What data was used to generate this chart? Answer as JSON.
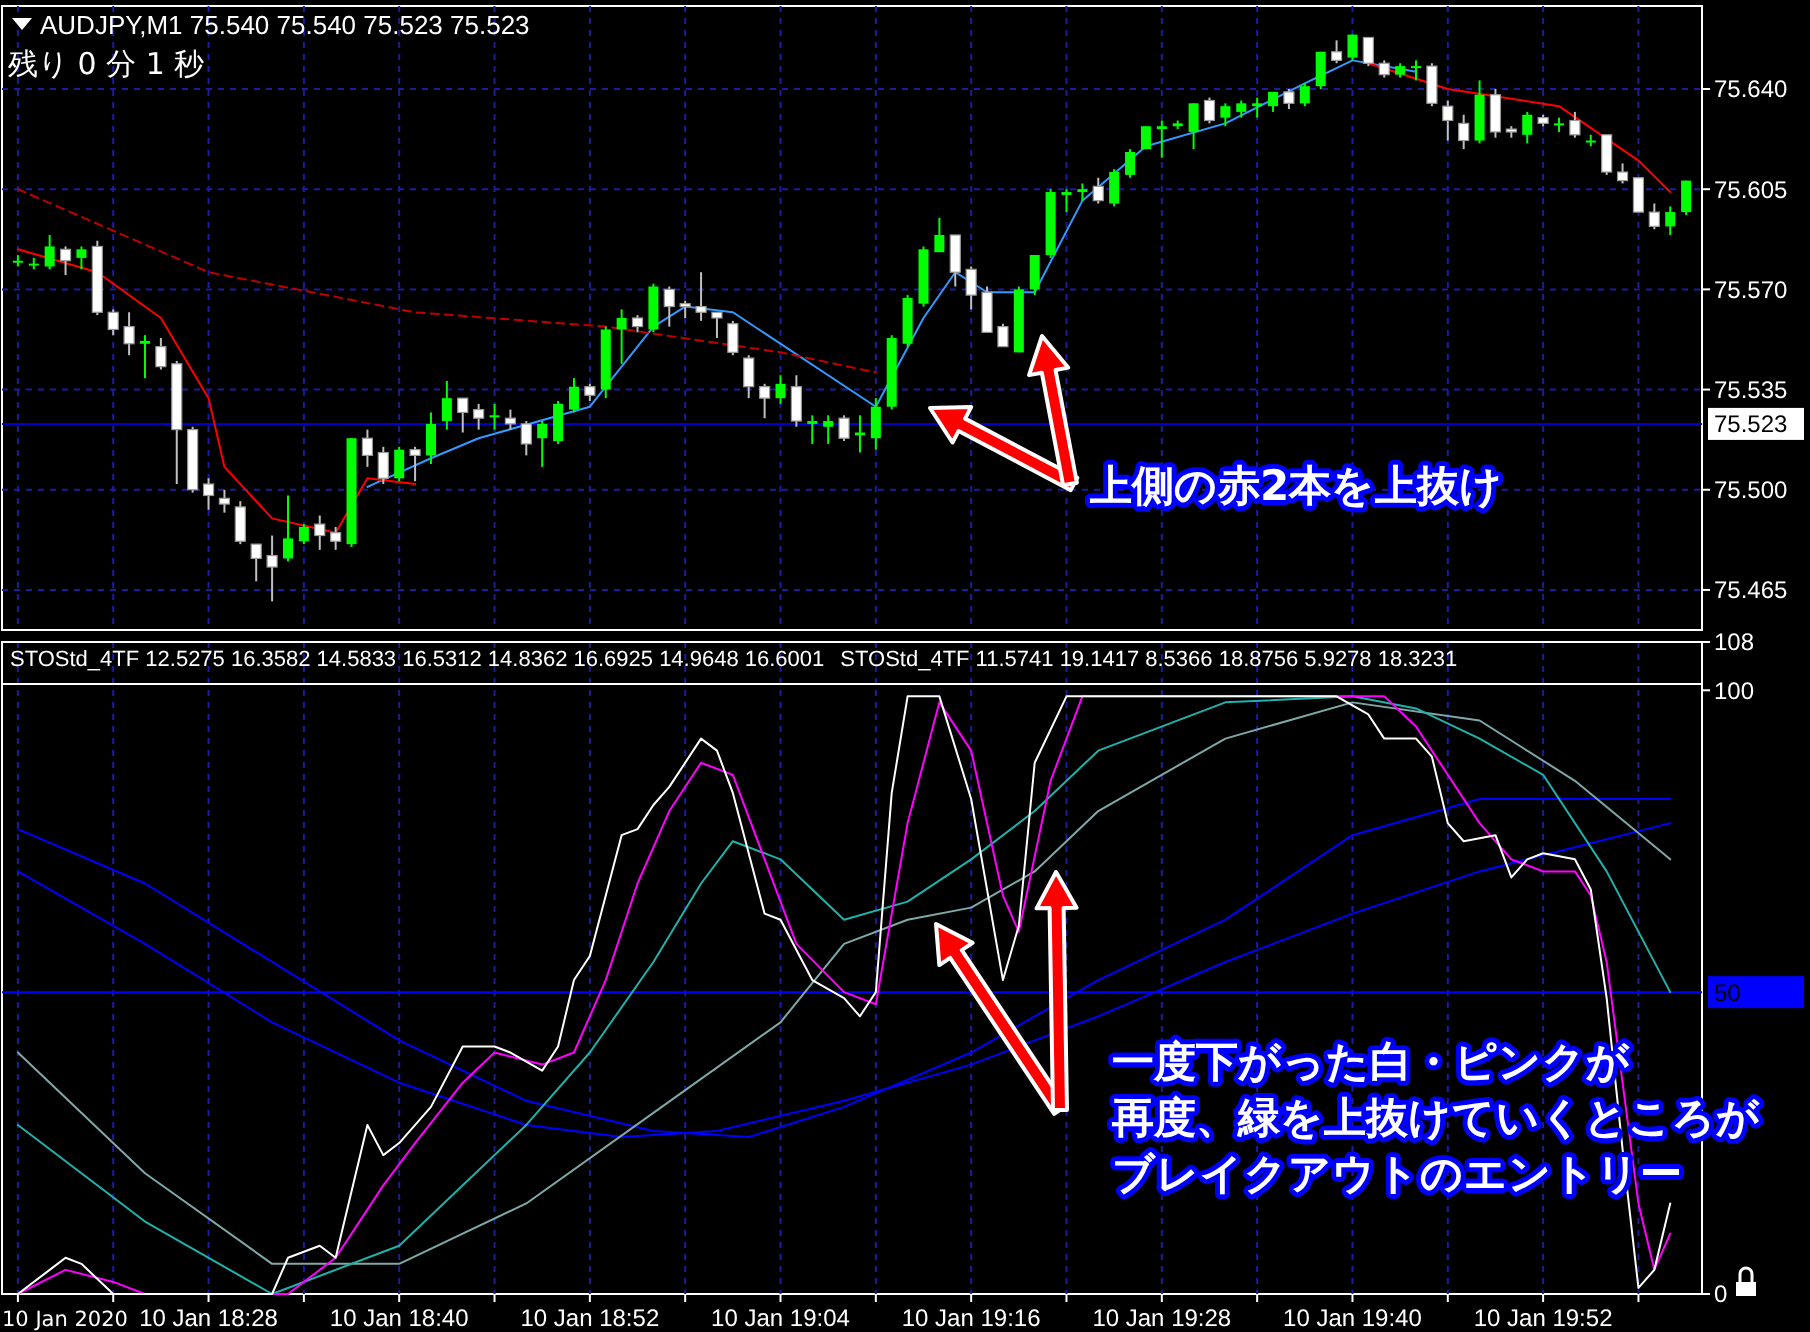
{
  "chart_data": [
    {
      "type": "candlestick",
      "title": "AUDJPY,M1 75.540 75.540 75.523 75.523",
      "annotations": [
        "残り 0 分 1 秒",
        "上側の赤2本を上抜け"
      ],
      "x": [
        "2020-01-10T18:16",
        "2020-01-10T18:17",
        "2020-01-10T18:18",
        "2020-01-10T18:19",
        "2020-01-10T18:20",
        "2020-01-10T18:21",
        "2020-01-10T18:22",
        "2020-01-10T18:23",
        "2020-01-10T18:24",
        "2020-01-10T18:25",
        "2020-01-10T18:26",
        "2020-01-10T18:27",
        "2020-01-10T18:28",
        "2020-01-10T18:29",
        "2020-01-10T18:30",
        "2020-01-10T18:31",
        "2020-01-10T18:32",
        "2020-01-10T18:33",
        "2020-01-10T18:34",
        "2020-01-10T18:35",
        "2020-01-10T18:36",
        "2020-01-10T18:37",
        "2020-01-10T18:38",
        "2020-01-10T18:39",
        "2020-01-10T18:40",
        "2020-01-10T18:41",
        "2020-01-10T18:42",
        "2020-01-10T18:43",
        "2020-01-10T18:44",
        "2020-01-10T18:45",
        "2020-01-10T18:46",
        "2020-01-10T18:47",
        "2020-01-10T18:48",
        "2020-01-10T18:49",
        "2020-01-10T18:50",
        "2020-01-10T18:51",
        "2020-01-10T18:52",
        "2020-01-10T18:53",
        "2020-01-10T18:54",
        "2020-01-10T18:55",
        "2020-01-10T18:56",
        "2020-01-10T18:57",
        "2020-01-10T18:58",
        "2020-01-10T18:59",
        "2020-01-10T19:00",
        "2020-01-10T19:01",
        "2020-01-10T19:02",
        "2020-01-10T19:03",
        "2020-01-10T19:04",
        "2020-01-10T19:05",
        "2020-01-10T19:06",
        "2020-01-10T19:07",
        "2020-01-10T19:08",
        "2020-01-10T19:09",
        "2020-01-10T19:10",
        "2020-01-10T19:11",
        "2020-01-10T19:12",
        "2020-01-10T19:13",
        "2020-01-10T19:14",
        "2020-01-10T19:15",
        "2020-01-10T19:16",
        "2020-01-10T19:17",
        "2020-01-10T19:18",
        "2020-01-10T19:19",
        "2020-01-10T19:20",
        "2020-01-10T19:21",
        "2020-01-10T19:22",
        "2020-01-10T19:23",
        "2020-01-10T19:24",
        "2020-01-10T19:25",
        "2020-01-10T19:26",
        "2020-01-10T19:27",
        "2020-01-10T19:28",
        "2020-01-10T19:29",
        "2020-01-10T19:30",
        "2020-01-10T19:31",
        "2020-01-10T19:32",
        "2020-01-10T19:33",
        "2020-01-10T19:34",
        "2020-01-10T19:35",
        "2020-01-10T19:36",
        "2020-01-10T19:37",
        "2020-01-10T19:38",
        "2020-01-10T19:39",
        "2020-01-10T19:40",
        "2020-01-10T19:41",
        "2020-01-10T19:42",
        "2020-01-10T19:43",
        "2020-01-10T19:44",
        "2020-01-10T19:45",
        "2020-01-10T19:46",
        "2020-01-10T19:47",
        "2020-01-10T19:48",
        "2020-01-10T19:49",
        "2020-01-10T19:50",
        "2020-01-10T19:51",
        "2020-01-10T19:52",
        "2020-01-10T19:53",
        "2020-01-10T19:54",
        "2020-01-10T19:55",
        "2020-01-10T19:56",
        "2020-01-10T19:57",
        "2020-01-10T19:58",
        "2020-01-10T19:59",
        "2020-01-10T20:00",
        "2020-01-10T20:01"
      ],
      "ohlc": [
        [
          75.58,
          75.582,
          75.578,
          75.58
        ],
        [
          75.579,
          75.581,
          75.577,
          75.579
        ],
        [
          75.578,
          75.589,
          75.577,
          75.585
        ],
        [
          75.584,
          75.585,
          75.575,
          75.58
        ],
        [
          75.581,
          75.585,
          75.577,
          75.584
        ],
        [
          75.585,
          75.587,
          75.561,
          75.562
        ],
        [
          75.562,
          75.563,
          75.554,
          75.556
        ],
        [
          75.557,
          75.562,
          75.547,
          75.551
        ],
        [
          75.551,
          75.554,
          75.539,
          75.552
        ],
        [
          75.55,
          75.553,
          75.542,
          75.543
        ],
        [
          75.544,
          75.545,
          75.502,
          75.521
        ],
        [
          75.521,
          75.522,
          75.499,
          75.5
        ],
        [
          75.502,
          75.504,
          75.493,
          75.498
        ],
        [
          75.497,
          75.5,
          75.492,
          75.495
        ],
        [
          75.494,
          75.496,
          75.481,
          75.482
        ],
        [
          75.481,
          75.481,
          75.468,
          75.476
        ],
        [
          75.477,
          75.484,
          75.461,
          75.473
        ],
        [
          75.476,
          75.498,
          75.475,
          75.483
        ],
        [
          75.482,
          75.488,
          75.481,
          75.487
        ],
        [
          75.488,
          75.491,
          75.479,
          75.484
        ],
        [
          75.485,
          75.487,
          75.479,
          75.482
        ],
        [
          75.481,
          75.518,
          75.48,
          75.518
        ],
        [
          75.518,
          75.521,
          75.508,
          75.512
        ],
        [
          75.513,
          75.515,
          75.502,
          75.504
        ],
        [
          75.504,
          75.515,
          75.503,
          75.514
        ],
        [
          75.514,
          75.515,
          75.503,
          75.512
        ],
        [
          75.512,
          75.527,
          75.509,
          75.523
        ],
        [
          75.524,
          75.538,
          75.521,
          75.532
        ],
        [
          75.532,
          75.532,
          75.52,
          75.527
        ],
        [
          75.528,
          75.53,
          75.521,
          75.525
        ],
        [
          75.526,
          75.53,
          75.521,
          75.526
        ],
        [
          75.525,
          75.528,
          75.521,
          75.523
        ],
        [
          75.523,
          75.524,
          75.512,
          75.516
        ],
        [
          75.518,
          75.524,
          75.508,
          75.523
        ],
        [
          75.517,
          75.531,
          75.516,
          75.53
        ],
        [
          75.528,
          75.539,
          75.527,
          75.536
        ],
        [
          75.536,
          75.537,
          75.531,
          75.533
        ],
        [
          75.535,
          75.557,
          75.532,
          75.556
        ],
        [
          75.556,
          75.563,
          75.544,
          75.56
        ],
        [
          75.56,
          75.561,
          75.555,
          75.557
        ],
        [
          75.556,
          75.572,
          75.555,
          75.571
        ],
        [
          75.57,
          75.571,
          75.557,
          75.564
        ],
        [
          75.565,
          75.566,
          75.56,
          75.564
        ],
        [
          75.564,
          75.576,
          75.559,
          75.562
        ],
        [
          75.562,
          75.562,
          75.553,
          75.56
        ],
        [
          75.558,
          75.559,
          75.547,
          75.548
        ],
        [
          75.546,
          75.547,
          75.532,
          75.536
        ],
        [
          75.536,
          75.537,
          75.525,
          75.532
        ],
        [
          75.532,
          75.54,
          75.53,
          75.537
        ],
        [
          75.536,
          75.54,
          75.522,
          75.524
        ],
        [
          75.523,
          75.526,
          75.516,
          75.524
        ],
        [
          75.522,
          75.526,
          75.516,
          75.524
        ],
        [
          75.525,
          75.526,
          75.517,
          75.518
        ],
        [
          75.519,
          75.526,
          75.513,
          75.52
        ],
        [
          75.518,
          75.532,
          75.514,
          75.529
        ],
        [
          75.529,
          75.554,
          75.528,
          75.553
        ],
        [
          75.551,
          75.568,
          75.55,
          75.567
        ],
        [
          75.565,
          75.585,
          75.564,
          75.584
        ],
        [
          75.583,
          75.595,
          75.583,
          75.589
        ],
        [
          75.589,
          75.589,
          75.571,
          75.576
        ],
        [
          75.577,
          75.578,
          75.563,
          75.568
        ],
        [
          75.569,
          75.571,
          75.555,
          75.555
        ],
        [
          75.557,
          75.558,
          75.55,
          75.55
        ],
        [
          75.548,
          75.571,
          75.548,
          75.57
        ],
        [
          75.57,
          75.582,
          75.568,
          75.582
        ],
        [
          75.582,
          75.605,
          75.581,
          75.604
        ],
        [
          75.603,
          75.605,
          75.597,
          75.604
        ],
        [
          75.604,
          75.607,
          75.601,
          75.605
        ],
        [
          75.606,
          75.609,
          75.6,
          75.601
        ],
        [
          75.6,
          75.612,
          75.599,
          75.611
        ],
        [
          75.61,
          75.619,
          75.609,
          75.618
        ],
        [
          75.619,
          75.627,
          75.619,
          75.627
        ],
        [
          75.626,
          75.629,
          75.616,
          75.627
        ],
        [
          75.627,
          75.629,
          75.626,
          75.628
        ],
        [
          75.625,
          75.635,
          75.619,
          75.635
        ],
        [
          75.636,
          75.637,
          75.628,
          75.629
        ],
        [
          75.63,
          75.635,
          75.627,
          75.634
        ],
        [
          75.632,
          75.636,
          75.63,
          75.635
        ],
        [
          75.634,
          75.637,
          75.63,
          75.635
        ],
        [
          75.634,
          75.639,
          75.632,
          75.639
        ],
        [
          75.639,
          75.64,
          75.633,
          75.635
        ],
        [
          75.635,
          75.642,
          75.634,
          75.641
        ],
        [
          75.641,
          75.653,
          75.64,
          75.653
        ],
        [
          75.653,
          75.657,
          75.649,
          75.65
        ],
        [
          75.651,
          75.659,
          75.65,
          75.659
        ],
        [
          75.658,
          75.658,
          75.648,
          75.649
        ],
        [
          75.649,
          75.65,
          75.644,
          75.645
        ],
        [
          75.645,
          75.649,
          75.644,
          75.648
        ],
        [
          75.648,
          75.65,
          75.643,
          75.648
        ],
        [
          75.648,
          75.649,
          75.634,
          75.635
        ],
        [
          75.634,
          75.636,
          75.622,
          75.629
        ],
        [
          75.628,
          75.631,
          75.619,
          75.622
        ],
        [
          75.622,
          75.643,
          75.621,
          75.638
        ],
        [
          75.638,
          75.64,
          75.623,
          75.625
        ],
        [
          75.626,
          75.627,
          75.623,
          75.625
        ],
        [
          75.624,
          75.632,
          75.621,
          75.631
        ],
        [
          75.63,
          75.631,
          75.627,
          75.628
        ],
        [
          75.628,
          75.63,
          75.625,
          75.628
        ],
        [
          75.629,
          75.632,
          75.623,
          75.624
        ],
        [
          75.622,
          75.624,
          75.62,
          75.622
        ],
        [
          75.624,
          75.624,
          75.61,
          75.611
        ],
        [
          75.611,
          75.614,
          75.607,
          75.608
        ],
        [
          75.609,
          75.609,
          75.597,
          75.597
        ],
        [
          75.597,
          75.6,
          75.591,
          75.592
        ],
        [
          75.592,
          75.599,
          75.589,
          75.597
        ],
        [
          75.597,
          75.608,
          75.596,
          75.608
        ]
      ],
      "series": [
        {
          "type": "line",
          "color": "#3399ff",
          "x": [
            "2020-01-10T18:38",
            "2020-01-10T18:42",
            "2020-01-10T18:45",
            "2020-01-10T18:52",
            "2020-01-10T18:56",
            "2020-01-10T18:58",
            "2020-01-10T19:01",
            "2020-01-10T19:10",
            "2020-01-10T19:13",
            "2020-01-10T19:15",
            "2020-01-10T19:17",
            "2020-01-10T19:20",
            "2020-01-10T19:23",
            "2020-01-10T19:27",
            "2020-01-10T19:32",
            "2020-01-10T19:37",
            "2020-01-10T19:40",
            "2020-01-10T19:44"
          ],
          "values": [
            75.501,
            75.511,
            75.518,
            75.529,
            75.557,
            75.564,
            75.562,
            75.529,
            75.56,
            75.576,
            75.569,
            75.569,
            75.601,
            75.62,
            75.628,
            75.642,
            75.65,
            75.646
          ]
        },
        {
          "type": "line",
          "color": "#ff0000",
          "x": [
            "2020-01-10T18:16",
            "2020-01-10T18:21",
            "2020-01-10T18:25",
            "2020-01-10T18:28",
            "2020-01-10T18:29",
            "2020-01-10T18:32",
            "2020-01-10T18:36",
            "2020-01-10T18:38",
            "2020-01-10T18:41"
          ],
          "values": [
            75.584,
            75.576,
            75.56,
            75.532,
            75.508,
            75.49,
            75.485,
            75.504,
            75.502
          ]
        },
        {
          "type": "line",
          "color": "#ff0000",
          "x": [
            "2020-01-10T19:41",
            "2020-01-10T19:46",
            "2020-01-10T19:53",
            "2020-01-10T19:58",
            "2020-01-10T20:00"
          ],
          "values": [
            75.649,
            75.64,
            75.634,
            75.615,
            75.604
          ]
        },
        {
          "type": "line",
          "color": "#c00000",
          "line_style": "dashed",
          "x": [
            "2020-01-10T18:16",
            "2020-01-10T18:28",
            "2020-01-10T18:41",
            "2020-01-10T18:53",
            "2020-01-10T19:04",
            "2020-01-10T19:10"
          ],
          "values": [
            75.605,
            75.576,
            75.562,
            75.557,
            75.548,
            75.541
          ]
        }
      ],
      "xlim": [
        "2020-01-10T18:15",
        "2020-01-10T20:02"
      ],
      "xticks": [
        {
          "value": "2020-01-10T18:16",
          "label": null
        },
        {
          "value": "2020-01-10T18:22",
          "label": null
        },
        {
          "value": "2020-01-10T18:28",
          "label": null
        },
        {
          "value": "2020-01-10T18:34",
          "label": null
        },
        {
          "value": "2020-01-10T18:40",
          "label": null
        },
        {
          "value": "2020-01-10T18:46",
          "label": null
        },
        {
          "value": "2020-01-10T18:52",
          "label": null
        },
        {
          "value": "2020-01-10T18:58",
          "label": null
        },
        {
          "value": "2020-01-10T19:04",
          "label": null
        },
        {
          "value": "2020-01-10T19:10",
          "label": null
        },
        {
          "value": "2020-01-10T19:16",
          "label": null
        },
        {
          "value": "2020-01-10T19:22",
          "label": null
        },
        {
          "value": "2020-01-10T19:28",
          "label": null
        },
        {
          "value": "2020-01-10T19:34",
          "label": null
        },
        {
          "value": "2020-01-10T19:40",
          "label": null
        },
        {
          "value": "2020-01-10T19:46",
          "label": null
        },
        {
          "value": "2020-01-10T19:52",
          "label": null
        },
        {
          "value": "2020-01-10T19:58",
          "label": null
        }
      ],
      "ylim": [
        75.451,
        75.669
      ],
      "yticks": [
        75.465,
        {
          "value": 75.5,
          "label": "75.500"
        },
        75.535,
        {
          "value": 75.57,
          "label": "75.570"
        },
        75.605,
        {
          "value": 75.64,
          "label": "75.640"
        }
      ],
      "ref_lines": [
        {
          "axis": "y",
          "value": 75.523,
          "label": "75.523",
          "color": "#0000c8"
        }
      ],
      "grid": true,
      "tick_labels": "y"
    },
    {
      "type": "line",
      "title": "STOStd_4TF 12.5275 16.3582 14.5833 16.5312 14.8362 16.6925 14.9648 16.6001",
      "subtitle": "STOStd_4TF 11.5741 19.1417 8.5366 18.8756 5.9278 18.3231",
      "annotations": [
        "一度下がった白・ピンクが",
        "再度、緑を上抜けていくところが",
        "ブレイクアウトのエントリー",
        "10 Jan 2020"
      ],
      "series": [
        {
          "color": "#0000ff",
          "x": [
            "2020-01-10T18:16",
            "2020-01-10T18:24",
            "2020-01-10T18:32",
            "2020-01-10T18:40",
            "2020-01-10T18:48",
            "2020-01-10T18:56",
            "2020-01-10T19:02",
            "2020-01-10T19:08",
            "2020-01-10T19:16",
            "2020-01-10T19:24",
            "2020-01-10T19:32",
            "2020-01-10T19:40",
            "2020-01-10T19:48",
            "2020-01-10T20:00"
          ],
          "values": [
            77,
            68,
            55,
            42,
            32,
            27,
            26,
            31,
            40,
            52,
            62,
            76,
            82,
            82
          ]
        },
        {
          "color": "#0000ff",
          "x": [
            "2020-01-10T18:16",
            "2020-01-10T18:24",
            "2020-01-10T18:32",
            "2020-01-10T18:40",
            "2020-01-10T18:48",
            "2020-01-10T18:54",
            "2020-01-10T19:00",
            "2020-01-10T19:08",
            "2020-01-10T19:16",
            "2020-01-10T19:24",
            "2020-01-10T19:32",
            "2020-01-10T19:40",
            "2020-01-10T19:48",
            "2020-01-10T20:00"
          ],
          "values": [
            70,
            58,
            45,
            35,
            28,
            26,
            27,
            32,
            38,
            46,
            55,
            63,
            70,
            78
          ]
        },
        {
          "color": "#7fa8a8",
          "x": [
            "2020-01-10T18:16",
            "2020-01-10T18:24",
            "2020-01-10T18:32",
            "2020-01-10T18:40",
            "2020-01-10T18:48",
            "2020-01-10T18:56",
            "2020-01-10T19:04",
            "2020-01-10T19:08",
            "2020-01-10T19:12",
            "2020-01-10T19:16",
            "2020-01-10T19:20",
            "2020-01-10T19:24",
            "2020-01-10T19:32",
            "2020-01-10T19:40",
            "2020-01-10T19:48",
            "2020-01-10T19:54",
            "2020-01-10T20:00"
          ],
          "values": [
            40,
            20,
            5,
            5,
            15,
            30,
            45,
            58,
            62,
            64,
            70,
            80,
            92,
            98,
            95,
            85,
            72
          ]
        },
        {
          "color": "#20b2aa",
          "x": [
            "2020-01-10T18:16",
            "2020-01-10T18:24",
            "2020-01-10T18:32",
            "2020-01-10T18:40",
            "2020-01-10T18:44",
            "2020-01-10T18:48",
            "2020-01-10T18:52",
            "2020-01-10T18:56",
            "2020-01-10T18:59",
            "2020-01-10T19:01",
            "2020-01-10T19:04",
            "2020-01-10T19:08",
            "2020-01-10T19:12",
            "2020-01-10T19:16",
            "2020-01-10T19:20",
            "2020-01-10T19:24",
            "2020-01-10T19:32",
            "2020-01-10T19:40",
            "2020-01-10T19:44",
            "2020-01-10T19:48",
            "2020-01-10T19:52",
            "2020-01-10T19:56",
            "2020-01-10T20:00"
          ],
          "values": [
            28,
            12,
            0,
            8,
            18,
            28,
            40,
            55,
            68,
            75,
            72,
            62,
            65,
            72,
            80,
            90,
            98,
            99,
            97,
            92,
            86,
            70,
            50
          ]
        },
        {
          "color": "#ff00ff",
          "x": [
            "2020-01-10T18:16",
            "2020-01-10T18:19",
            "2020-01-10T18:22",
            "2020-01-10T18:24",
            "2020-01-10T18:33",
            "2020-01-10T18:36",
            "2020-01-10T18:39",
            "2020-01-10T18:41",
            "2020-01-10T18:44",
            "2020-01-10T18:46",
            "2020-01-10T18:49",
            "2020-01-10T18:51",
            "2020-01-10T18:53",
            "2020-01-10T18:55",
            "2020-01-10T18:57",
            "2020-01-10T18:59",
            "2020-01-10T19:01",
            "2020-01-10T19:03",
            "2020-01-10T19:05",
            "2020-01-10T19:08",
            "2020-01-10T19:10",
            "2020-01-10T19:12",
            "2020-01-10T19:14",
            "2020-01-10T19:16",
            "2020-01-10T19:18",
            "2020-01-10T19:19",
            "2020-01-10T19:21",
            "2020-01-10T19:23",
            "2020-01-10T19:42",
            "2020-01-10T19:44",
            "2020-01-10T19:46",
            "2020-01-10T19:48",
            "2020-01-10T19:50",
            "2020-01-10T19:52",
            "2020-01-10T19:54",
            "2020-01-10T19:55",
            "2020-01-10T19:56",
            "2020-01-10T19:57",
            "2020-01-10T19:58",
            "2020-01-10T19:59",
            "2020-01-10T20:00"
          ],
          "values": [
            0,
            4,
            2,
            0,
            0,
            6,
            18,
            25,
            35,
            40,
            38,
            40,
            52,
            68,
            80,
            88,
            86,
            72,
            58,
            50,
            48,
            78,
            98,
            90,
            66,
            60,
            85,
            99,
            99,
            94,
            86,
            78,
            72,
            70,
            70,
            66,
            55,
            35,
            15,
            4,
            10
          ]
        },
        {
          "color": "#ffffff",
          "x": [
            "2020-01-10T18:16",
            "2020-01-10T18:18",
            "2020-01-10T18:19",
            "2020-01-10T18:20",
            "2020-01-10T18:22",
            "2020-01-10T18:32",
            "2020-01-10T18:33",
            "2020-01-10T18:35",
            "2020-01-10T18:36",
            "2020-01-10T18:38",
            "2020-01-10T18:39",
            "2020-01-10T18:40",
            "2020-01-10T18:42",
            "2020-01-10T18:44",
            "2020-01-10T18:46",
            "2020-01-10T18:47",
            "2020-01-10T18:49",
            "2020-01-10T18:50",
            "2020-01-10T18:51",
            "2020-01-10T18:52",
            "2020-01-10T18:54",
            "2020-01-10T18:55",
            "2020-01-10T18:56",
            "2020-01-10T18:57",
            "2020-01-10T18:59",
            "2020-01-10T19:00",
            "2020-01-10T19:01",
            "2020-01-10T19:03",
            "2020-01-10T19:04",
            "2020-01-10T19:06",
            "2020-01-10T19:08",
            "2020-01-10T19:09",
            "2020-01-10T19:10",
            "2020-01-10T19:11",
            "2020-01-10T19:12",
            "2020-01-10T19:14",
            "2020-01-10T19:16",
            "2020-01-10T19:18",
            "2020-01-10T19:19",
            "2020-01-10T19:20",
            "2020-01-10T19:22",
            "2020-01-10T19:24",
            "2020-01-10T19:39",
            "2020-01-10T19:41",
            "2020-01-10T19:42",
            "2020-01-10T19:44",
            "2020-01-10T19:45",
            "2020-01-10T19:46",
            "2020-01-10T19:47",
            "2020-01-10T19:49",
            "2020-01-10T19:50",
            "2020-01-10T19:51",
            "2020-01-10T19:52",
            "2020-01-10T19:54",
            "2020-01-10T19:55",
            "2020-01-10T19:56",
            "2020-01-10T19:57",
            "2020-01-10T19:58",
            "2020-01-10T19:59",
            "2020-01-10T20:00"
          ],
          "values": [
            0,
            4,
            6,
            5,
            0,
            0,
            6,
            8,
            6,
            28,
            23,
            25,
            31,
            41,
            41,
            40,
            37,
            41,
            52,
            56,
            76,
            77,
            81,
            84,
            92,
            90,
            83,
            63,
            62,
            52,
            49,
            46,
            50,
            83,
            99,
            99,
            82,
            52,
            61,
            88,
            99,
            99,
            99,
            96,
            92,
            92,
            89,
            78,
            75,
            76,
            69,
            72,
            73,
            72,
            67,
            49,
            24,
            1,
            4,
            15
          ]
        }
      ],
      "xlim": [
        "2020-01-10T18:15",
        "2020-01-10T20:02"
      ],
      "xticks": [
        {
          "value": "2020-01-10T18:16",
          "label": null
        },
        {
          "value": "2020-01-10T18:22",
          "label": null
        },
        {
          "value": "2020-01-10T18:28",
          "label": "10 Jan 18:28"
        },
        {
          "value": "2020-01-10T18:34",
          "label": null
        },
        {
          "value": "2020-01-10T18:40",
          "label": "10 Jan 18:40"
        },
        {
          "value": "2020-01-10T18:46",
          "label": null
        },
        {
          "value": "2020-01-10T18:52",
          "label": "10 Jan 18:52"
        },
        {
          "value": "2020-01-10T18:58",
          "label": null
        },
        {
          "value": "2020-01-10T19:04",
          "label": "10 Jan 19:04"
        },
        {
          "value": "2020-01-10T19:10",
          "label": null
        },
        {
          "value": "2020-01-10T19:16",
          "label": "10 Jan 19:16"
        },
        {
          "value": "2020-01-10T19:22",
          "label": null
        },
        {
          "value": "2020-01-10T19:28",
          "label": "10 Jan 19:28"
        },
        {
          "value": "2020-01-10T19:34",
          "label": null
        },
        {
          "value": "2020-01-10T19:40",
          "label": "10 Jan 19:40"
        },
        {
          "value": "2020-01-10T19:46",
          "label": null
        },
        {
          "value": "2020-01-10T19:52",
          "label": "10 Jan 19:52"
        },
        {
          "value": "2020-01-10T19:58",
          "label": null
        }
      ],
      "ylim": [
        0,
        108
      ],
      "yticks": [
        0,
        100,
        108
      ],
      "ref_lines": [
        {
          "axis": "y",
          "value": 50,
          "label": "50",
          "color": "#0000ff"
        }
      ],
      "grid": "x"
    }
  ]
}
